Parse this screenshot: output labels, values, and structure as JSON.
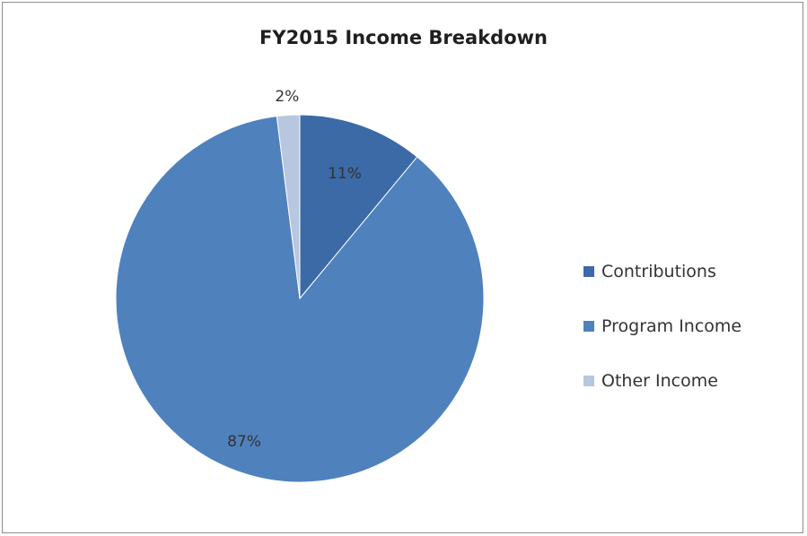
{
  "chart_data": {
    "type": "pie",
    "title": "FY2015 Income Breakdown",
    "categories": [
      "Contributions",
      "Program Income",
      "Other Income"
    ],
    "values": [
      11,
      87,
      2
    ],
    "data_labels": [
      "11%",
      "87%",
      "2%"
    ],
    "colors": [
      "#3b6aa7",
      "#4f81bd",
      "#b7c7e0"
    ],
    "legend_position": "right"
  }
}
